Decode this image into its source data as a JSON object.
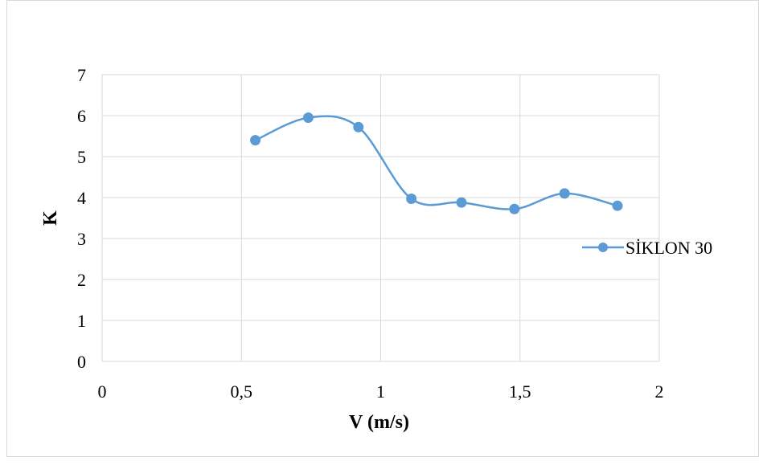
{
  "chart_data": {
    "type": "line",
    "smooth": true,
    "title": "",
    "xlabel": "V (m/s)",
    "ylabel": "K",
    "xlim": [
      0,
      2
    ],
    "ylim": [
      0,
      7
    ],
    "xticks": [
      0,
      0.5,
      1,
      1.5,
      2
    ],
    "xtick_labels": [
      "0",
      "0,5",
      "1",
      "1,5",
      "2"
    ],
    "yticks": [
      0,
      1,
      2,
      3,
      4,
      5,
      6,
      7
    ],
    "ytick_labels": [
      "0",
      "1",
      "2",
      "3",
      "4",
      "5",
      "6",
      "7"
    ],
    "grid": true,
    "legend_position": "right",
    "series": [
      {
        "name": "SİKLON 30",
        "color": "#5b9bd5",
        "marker": "circle",
        "x": [
          0.55,
          0.74,
          0.92,
          1.11,
          1.29,
          1.48,
          1.66,
          1.85
        ],
        "y": [
          5.4,
          5.95,
          5.72,
          3.97,
          3.88,
          3.72,
          4.1,
          3.8
        ]
      }
    ]
  }
}
